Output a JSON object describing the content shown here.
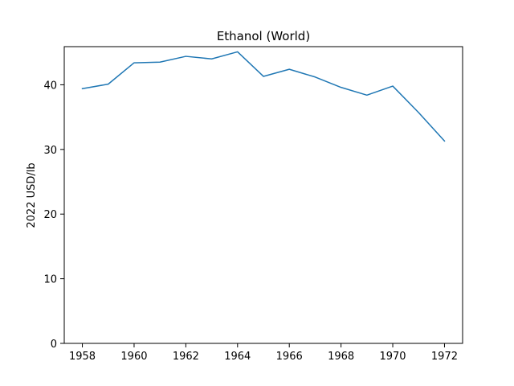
{
  "chart_data": {
    "type": "line",
    "title": "Ethanol (World)",
    "xlabel": "",
    "ylabel": "2022 USD/lb",
    "x": [
      1958,
      1959,
      1960,
      1961,
      1962,
      1963,
      1964,
      1965,
      1966,
      1967,
      1968,
      1969,
      1970,
      1971,
      1972
    ],
    "series": [
      {
        "name": "",
        "values": [
          39.4,
          40.1,
          43.4,
          43.5,
          44.4,
          44.0,
          45.1,
          41.3,
          42.4,
          41.2,
          39.6,
          38.4,
          39.8,
          35.7,
          31.3
        ],
        "color": "#1f77b4"
      }
    ],
    "xlim": [
      1957.3,
      1972.7
    ],
    "ylim": [
      0,
      45.9
    ],
    "xticks": [
      1958,
      1960,
      1962,
      1964,
      1966,
      1968,
      1970,
      1972
    ],
    "xtick_labels": [
      "1958",
      "1960",
      "1962",
      "1964",
      "1966",
      "1968",
      "1970",
      "1972"
    ],
    "yticks": [
      0,
      10,
      20,
      30,
      40
    ],
    "ytick_labels": [
      "0",
      "10",
      "20",
      "30",
      "40"
    ],
    "grid": false,
    "legend": "none"
  }
}
